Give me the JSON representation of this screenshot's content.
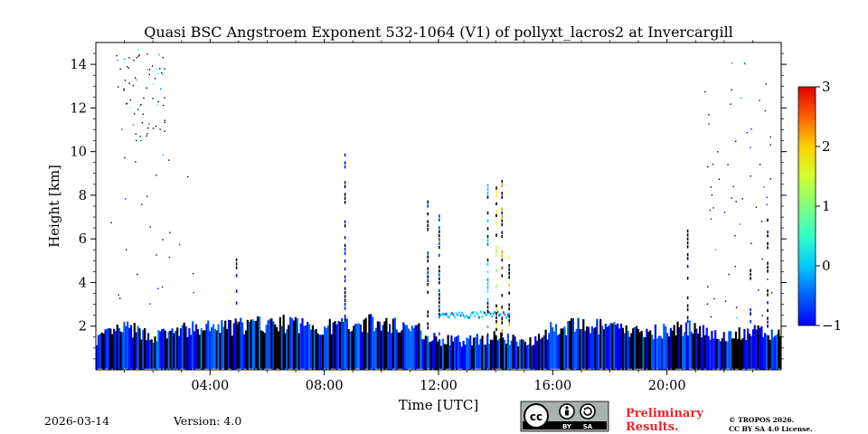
{
  "chart_data": {
    "type": "heatmap",
    "title": "Quasi BSC Angstroem Exponent 532-1064 (V1) of pollyxt_lacros2 at Invercargill",
    "xlabel": "Time [UTC]",
    "ylabel": "Height [km]",
    "x_range_hours": [
      0,
      24
    ],
    "ylim_km": [
      0,
      15
    ],
    "x_ticks": [
      {
        "value": 4,
        "label": "04:00"
      },
      {
        "value": 8,
        "label": "08:00"
      },
      {
        "value": 12,
        "label": "12:00"
      },
      {
        "value": 16,
        "label": "16:00"
      },
      {
        "value": 20,
        "label": "20:00"
      }
    ],
    "y_ticks": [
      {
        "value": 2,
        "label": "2"
      },
      {
        "value": 4,
        "label": "4"
      },
      {
        "value": 6,
        "label": "6"
      },
      {
        "value": 8,
        "label": "8"
      },
      {
        "value": 10,
        "label": "10"
      },
      {
        "value": 12,
        "label": "12"
      },
      {
        "value": 14,
        "label": "14"
      }
    ],
    "colorbar": {
      "range": [
        -1,
        3
      ],
      "colormap": "jet",
      "ticks": [
        {
          "value": 3,
          "label": "3"
        },
        {
          "value": 2,
          "label": "2"
        },
        {
          "value": 1,
          "label": "1"
        },
        {
          "value": 0,
          "label": "0"
        },
        {
          "value": -1,
          "label": "−1"
        }
      ]
    },
    "low_layer": {
      "description_top_height_km_by_hour": [
        [
          0.0,
          1.5
        ],
        [
          1.0,
          2.0
        ],
        [
          2.0,
          1.6
        ],
        [
          3.0,
          1.9
        ],
        [
          4.0,
          2.0
        ],
        [
          5.0,
          2.1
        ],
        [
          6.0,
          2.2
        ],
        [
          7.0,
          2.2
        ],
        [
          8.0,
          2.0
        ],
        [
          9.0,
          2.3
        ],
        [
          10.0,
          2.2
        ],
        [
          11.0,
          2.1
        ],
        [
          12.0,
          1.4
        ],
        [
          13.0,
          1.4
        ],
        [
          14.0,
          1.6
        ],
        [
          15.0,
          1.3
        ],
        [
          16.0,
          2.0
        ],
        [
          17.0,
          2.1
        ],
        [
          18.0,
          2.0
        ],
        [
          19.0,
          1.8
        ],
        [
          20.0,
          1.9
        ],
        [
          21.0,
          2.0
        ],
        [
          22.0,
          1.6
        ],
        [
          23.0,
          1.8
        ],
        [
          24.0,
          1.7
        ]
      ],
      "typical_value": -0.3
    },
    "aerosol_band": {
      "time_start_h": 12.0,
      "time_end_h": 14.5,
      "height_km": 2.45,
      "value": 0.1
    },
    "spikes": [
      {
        "time_h": 8.7,
        "top_km": 10.2,
        "value": -0.5
      },
      {
        "time_h": 11.6,
        "top_km": 7.8,
        "value": -0.4
      },
      {
        "time_h": 12.0,
        "top_km": 7.5,
        "value": -0.3
      },
      {
        "time_h": 13.7,
        "top_km": 8.8,
        "value": 0.3
      },
      {
        "time_h": 14.0,
        "top_km": 9.3,
        "value": 1.5
      },
      {
        "time_h": 14.2,
        "top_km": 9.0,
        "value": 2.0
      },
      {
        "time_h": 14.45,
        "top_km": 5.2,
        "value": 1.8
      },
      {
        "time_h": 4.9,
        "top_km": 5.2,
        "value": -0.5
      },
      {
        "time_h": 20.7,
        "top_km": 6.4,
        "value": -0.5
      },
      {
        "time_h": 22.9,
        "top_km": 4.7,
        "value": -0.4
      },
      {
        "time_h": 23.5,
        "top_km": 7.0,
        "value": -0.4
      }
    ],
    "scatter_regions": [
      {
        "time_start_h": 0.7,
        "time_end_h": 2.4,
        "bottom_km": 10.5,
        "top_km": 14.8,
        "count": 70,
        "value": 0.3
      },
      {
        "time_start_h": 21.3,
        "time_end_h": 23.9,
        "bottom_km": 2.2,
        "top_km": 14.8,
        "count": 60,
        "value": -0.3
      },
      {
        "time_start_h": 0.5,
        "time_end_h": 3.5,
        "bottom_km": 3.0,
        "top_km": 10.0,
        "count": 25,
        "value": -0.4
      }
    ]
  },
  "footer": {
    "date": "2026-03-14",
    "version": "Version: 4.0",
    "license_badge": {
      "by": "BY",
      "sa": "SA"
    },
    "preliminary_line1": "Preliminary",
    "preliminary_line2": "Results.",
    "copyright_line1": "© TROPOS 2026.",
    "copyright_line2": "CC BY SA 4.0 License."
  },
  "colors": {
    "preliminary": "#e8262a",
    "badge_bg": "#aab2ad",
    "badge_fg": "#000000"
  }
}
